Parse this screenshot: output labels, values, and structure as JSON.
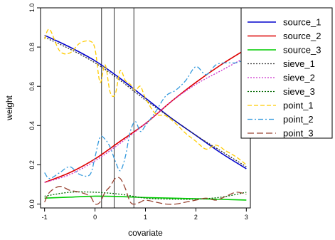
{
  "chart_data": {
    "type": "line",
    "title": "",
    "xlabel": "covariate",
    "ylabel": "weight",
    "xlim": [
      -1.08,
      3.08
    ],
    "ylim": [
      -0.02,
      1.0
    ],
    "x_ticks": [
      -1,
      0,
      1,
      2,
      3
    ],
    "x_tick_labels": [
      "-1",
      "0",
      "1",
      "2",
      "3"
    ],
    "y_ticks": [
      0.0,
      0.2,
      0.4,
      0.6,
      0.8,
      1.0
    ],
    "y_tick_labels": [
      "0.0",
      "0.2",
      "0.4",
      "0.6",
      "0.8",
      "1.0"
    ],
    "vertical_lines": [
      0.13,
      0.38,
      0.77
    ],
    "legend_position": "top-right",
    "series": [
      {
        "name": "source_1",
        "color": "#0000cc",
        "dash": "solid",
        "x": [
          -1,
          -0.5,
          0,
          0.5,
          1,
          1.5,
          2,
          2.5,
          3
        ],
        "y": [
          0.86,
          0.8,
          0.73,
          0.64,
          0.54,
          0.44,
          0.35,
          0.26,
          0.18
        ]
      },
      {
        "name": "source_2",
        "color": "#dd0000",
        "dash": "solid",
        "x": [
          -1,
          -0.5,
          0,
          0.5,
          1,
          1.5,
          2,
          2.5,
          3
        ],
        "y": [
          0.11,
          0.16,
          0.23,
          0.32,
          0.41,
          0.52,
          0.62,
          0.71,
          0.79
        ]
      },
      {
        "name": "source_3",
        "color": "#00cc00",
        "dash": "solid",
        "x": [
          -1,
          -0.5,
          0,
          0.5,
          1,
          1.5,
          2,
          2.5,
          3
        ],
        "y": [
          0.03,
          0.035,
          0.04,
          0.038,
          0.033,
          0.03,
          0.027,
          0.024,
          0.02
        ]
      },
      {
        "name": "sieve_1",
        "color": "#333333",
        "dash": "dotted",
        "x": [
          -1,
          -0.5,
          0,
          0.5,
          1,
          1.5,
          2,
          2.5,
          3
        ],
        "y": [
          0.85,
          0.79,
          0.72,
          0.63,
          0.53,
          0.44,
          0.35,
          0.27,
          0.19
        ]
      },
      {
        "name": "sieve_2",
        "color": "#cc33cc",
        "dash": "dotted",
        "x": [
          -1,
          -0.5,
          0,
          0.5,
          1,
          1.5,
          2,
          2.5,
          3
        ],
        "y": [
          0.11,
          0.15,
          0.22,
          0.31,
          0.41,
          0.52,
          0.61,
          0.68,
          0.75
        ]
      },
      {
        "name": "sieve_3",
        "color": "#006600",
        "dash": "dotted",
        "x": [
          -1,
          -0.5,
          0,
          0.5,
          1,
          1.5,
          2,
          2.5,
          3
        ],
        "y": [
          0.04,
          0.06,
          0.06,
          0.05,
          0.03,
          0.025,
          0.025,
          0.035,
          0.06
        ]
      },
      {
        "name": "point_1",
        "color": "#ffcc00",
        "dash": "dashed",
        "x": [
          -1,
          -0.9,
          -0.7,
          -0.5,
          -0.3,
          -0.1,
          0,
          0.1,
          0.2,
          0.3,
          0.4,
          0.5,
          0.6,
          0.7,
          0.8,
          0.9,
          1.0,
          1.2,
          1.4,
          1.6,
          1.8,
          2.0,
          2.2,
          2.4,
          2.6,
          2.8,
          3.0
        ],
        "y": [
          0.84,
          0.89,
          0.78,
          0.77,
          0.82,
          0.83,
          0.79,
          0.62,
          0.71,
          0.57,
          0.56,
          0.68,
          0.63,
          0.61,
          0.58,
          0.6,
          0.54,
          0.46,
          0.45,
          0.41,
          0.36,
          0.32,
          0.28,
          0.3,
          0.27,
          0.24,
          0.2
        ]
      },
      {
        "name": "point_2",
        "color": "#3399dd",
        "dash": "dashdot",
        "x": [
          -1,
          -0.9,
          -0.7,
          -0.5,
          -0.3,
          -0.1,
          0,
          0.1,
          0.2,
          0.3,
          0.4,
          0.5,
          0.6,
          0.7,
          0.8,
          0.9,
          1.0,
          1.2,
          1.4,
          1.6,
          1.8,
          2.0,
          2.2,
          2.4,
          2.6,
          2.8,
          3.0
        ],
        "y": [
          0.16,
          0.13,
          0.16,
          0.19,
          0.15,
          0.15,
          0.24,
          0.34,
          0.33,
          0.29,
          0.22,
          0.17,
          0.24,
          0.37,
          0.42,
          0.37,
          0.4,
          0.47,
          0.55,
          0.58,
          0.63,
          0.7,
          0.66,
          0.71,
          0.72,
          0.72,
          0.74
        ]
      },
      {
        "name": "point_3",
        "color": "#994433",
        "dash": "longdash",
        "x": [
          -1,
          -0.9,
          -0.7,
          -0.5,
          -0.3,
          -0.1,
          0,
          0.1,
          0.2,
          0.3,
          0.4,
          0.5,
          0.6,
          0.7,
          0.8,
          0.9,
          1.0,
          1.2,
          1.4,
          1.6,
          1.8,
          2.0,
          2.2,
          2.4,
          2.6,
          2.8,
          3.0
        ],
        "y": [
          0.01,
          0.06,
          0.09,
          0.07,
          0.06,
          0.04,
          0.0,
          0.01,
          0.06,
          0.09,
          0.13,
          0.13,
          0.08,
          0.01,
          0.0,
          0.01,
          0.02,
          0.01,
          0.0,
          0.0,
          0.01,
          0.02,
          0.03,
          0.02,
          0.04,
          0.06,
          0.05
        ]
      }
    ]
  }
}
